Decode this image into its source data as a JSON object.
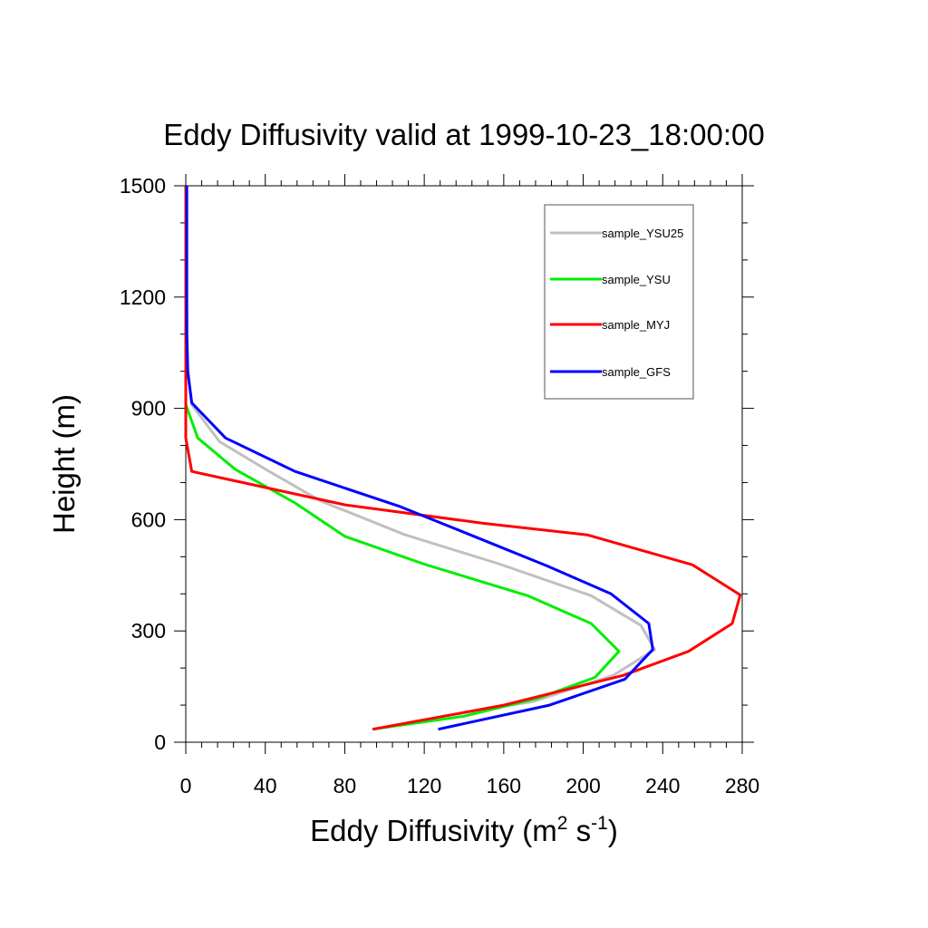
{
  "chart_data": {
    "type": "line",
    "title": "Eddy Diffusivity valid at 1999-10-23_18:00:00",
    "xlabel": {
      "base": "Eddy Diffusivity (m",
      "sup1": "2",
      "mid": " s",
      "sup2": "-1",
      "end": ")"
    },
    "ylabel": "Height (m)",
    "xlim": [
      0,
      280
    ],
    "ylim": [
      0,
      1500
    ],
    "xticks": [
      0,
      40,
      80,
      120,
      160,
      200,
      240,
      280
    ],
    "yticks": [
      0,
      300,
      600,
      900,
      1200,
      1500
    ],
    "xtick_labels": [
      "0",
      "40",
      "80",
      "120",
      "160",
      "200",
      "240",
      "280"
    ],
    "ytick_labels": [
      "0",
      "300",
      "600",
      "900",
      "1200",
      "1500"
    ],
    "grid": false,
    "legend_position": "top-right",
    "series": [
      {
        "name": "sample_YSU25",
        "color": "#c0c0c0",
        "x": [
          95,
          130,
          175,
          215,
          236,
          229,
          204,
          158,
          110,
          68,
          42,
          17,
          3,
          1,
          0.5,
          0.5
        ],
        "y": [
          35,
          70,
          110,
          180,
          250,
          315,
          395,
          480,
          560,
          650,
          730,
          810,
          910,
          1000,
          1200,
          1500
        ]
      },
      {
        "name": "sample_YSU",
        "color": "#00ee00",
        "x": [
          94,
          140,
          178,
          206,
          218,
          204,
          172,
          120,
          80,
          55,
          25,
          6,
          0,
          0,
          0.3,
          0.3
        ],
        "y": [
          35,
          70,
          120,
          175,
          245,
          320,
          395,
          480,
          555,
          645,
          735,
          820,
          910,
          1000,
          1200,
          1500
        ]
      },
      {
        "name": "sample_MYJ",
        "color": "#ff0000",
        "x": [
          94,
          160,
          220,
          253,
          275,
          279,
          255,
          202,
          150,
          80,
          3,
          0,
          0,
          0,
          0,
          0
        ],
        "y": [
          35,
          100,
          180,
          245,
          320,
          397,
          478,
          559,
          590,
          640,
          730,
          820,
          900,
          1000,
          1200,
          1500
        ]
      },
      {
        "name": "sample_GFS",
        "color": "#0000ff",
        "x": [
          127,
          183,
          221,
          235,
          233,
          214,
          182,
          145,
          108,
          55,
          20,
          3,
          1,
          0.5,
          0.5,
          0.5
        ],
        "y": [
          35,
          100,
          170,
          250,
          320,
          400,
          475,
          555,
          635,
          730,
          820,
          915,
          1000,
          1100,
          1300,
          1500
        ]
      }
    ]
  }
}
